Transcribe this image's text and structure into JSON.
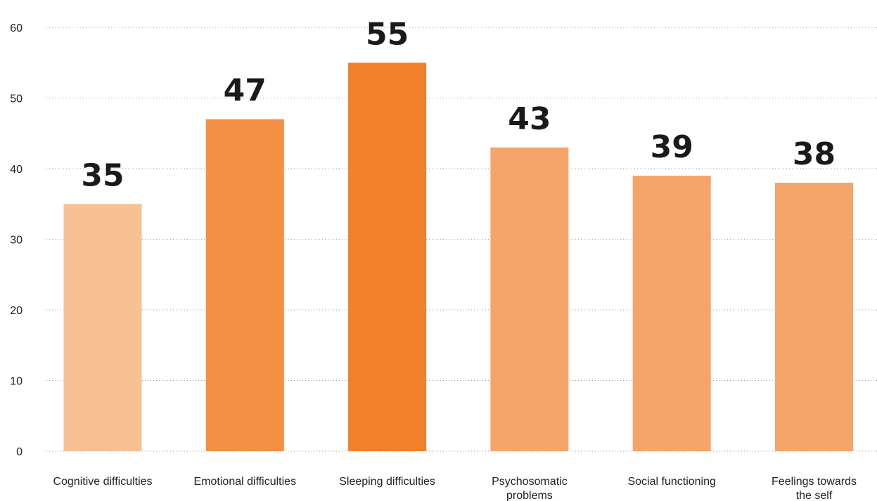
{
  "chart_data": {
    "type": "bar",
    "categories": [
      [
        "Cognitive difficulties"
      ],
      [
        "Emotional difficulties"
      ],
      [
        "Sleeping difficulties"
      ],
      [
        "Psychosomatic",
        "problems"
      ],
      [
        "Social functioning"
      ],
      [
        "Feelings towards",
        "the self"
      ]
    ],
    "values": [
      35,
      47,
      55,
      43,
      39,
      38
    ],
    "data_labels": [
      "35",
      "47",
      "55",
      "43",
      "39",
      "38"
    ],
    "bar_colors": [
      "#f7c095",
      "#f48f44",
      "#f1802b",
      "#f5a46a",
      "#f5a46a",
      "#f5a46a"
    ],
    "ylim": [
      0,
      60
    ],
    "yticks": [
      0,
      10,
      20,
      30,
      40,
      50,
      60
    ],
    "grid": true,
    "title": "",
    "xlabel": "",
    "ylabel": ""
  }
}
